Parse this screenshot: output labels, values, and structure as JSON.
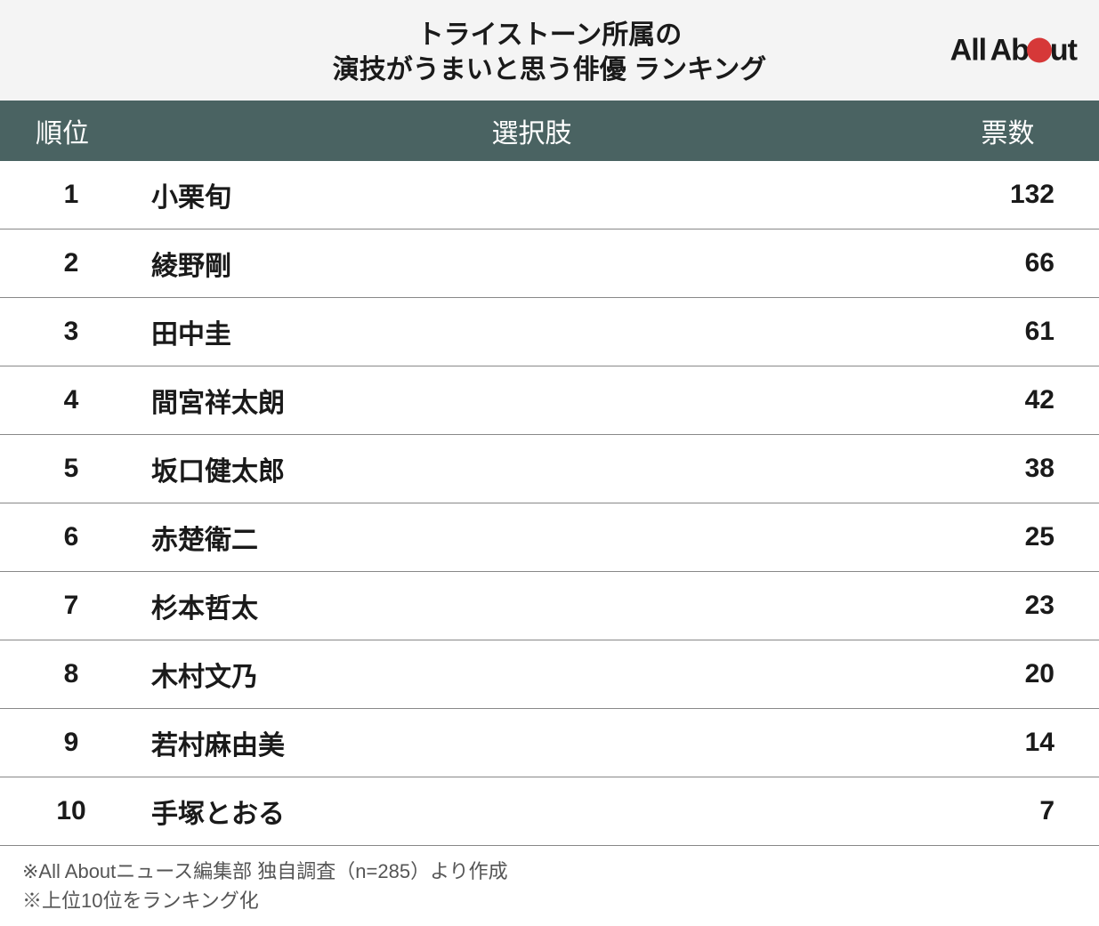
{
  "header": {
    "title_line1": "トライストーン所属の",
    "title_line2": "演技がうまいと思う俳優 ランキング",
    "logo_part1": "All",
    "logo_part2": "Ab",
    "logo_part3": "ut",
    "logo_circle_color": "#d63838"
  },
  "table": {
    "columns": {
      "rank": "順位",
      "name": "選択肢",
      "votes": "票数"
    },
    "header_bg_color": "#4a6362",
    "header_text_color": "#ffffff",
    "row_border_color": "#888888",
    "text_color": "#1a1a1a",
    "font_size": 30,
    "rows": [
      {
        "rank": "1",
        "name": "小栗旬",
        "votes": "132"
      },
      {
        "rank": "2",
        "name": "綾野剛",
        "votes": "66"
      },
      {
        "rank": "3",
        "name": "田中圭",
        "votes": "61"
      },
      {
        "rank": "4",
        "name": "間宮祥太朗",
        "votes": "42"
      },
      {
        "rank": "5",
        "name": "坂口健太郎",
        "votes": "38"
      },
      {
        "rank": "6",
        "name": "赤楚衛二",
        "votes": "25"
      },
      {
        "rank": "7",
        "name": "杉本哲太",
        "votes": "23"
      },
      {
        "rank": "8",
        "name": "木村文乃",
        "votes": "20"
      },
      {
        "rank": "9",
        "name": "若村麻由美",
        "votes": "14"
      },
      {
        "rank": "10",
        "name": "手塚とおる",
        "votes": "7"
      }
    ]
  },
  "footer": {
    "note1": "※All Aboutニュース編集部 独自調査（n=285）より作成",
    "note2": "※上位10位をランキング化"
  },
  "styling": {
    "background_color": "#ffffff",
    "header_bg_color": "#f4f4f4",
    "title_font_size": 30,
    "footer_font_size": 22,
    "footer_text_color": "#555555"
  }
}
